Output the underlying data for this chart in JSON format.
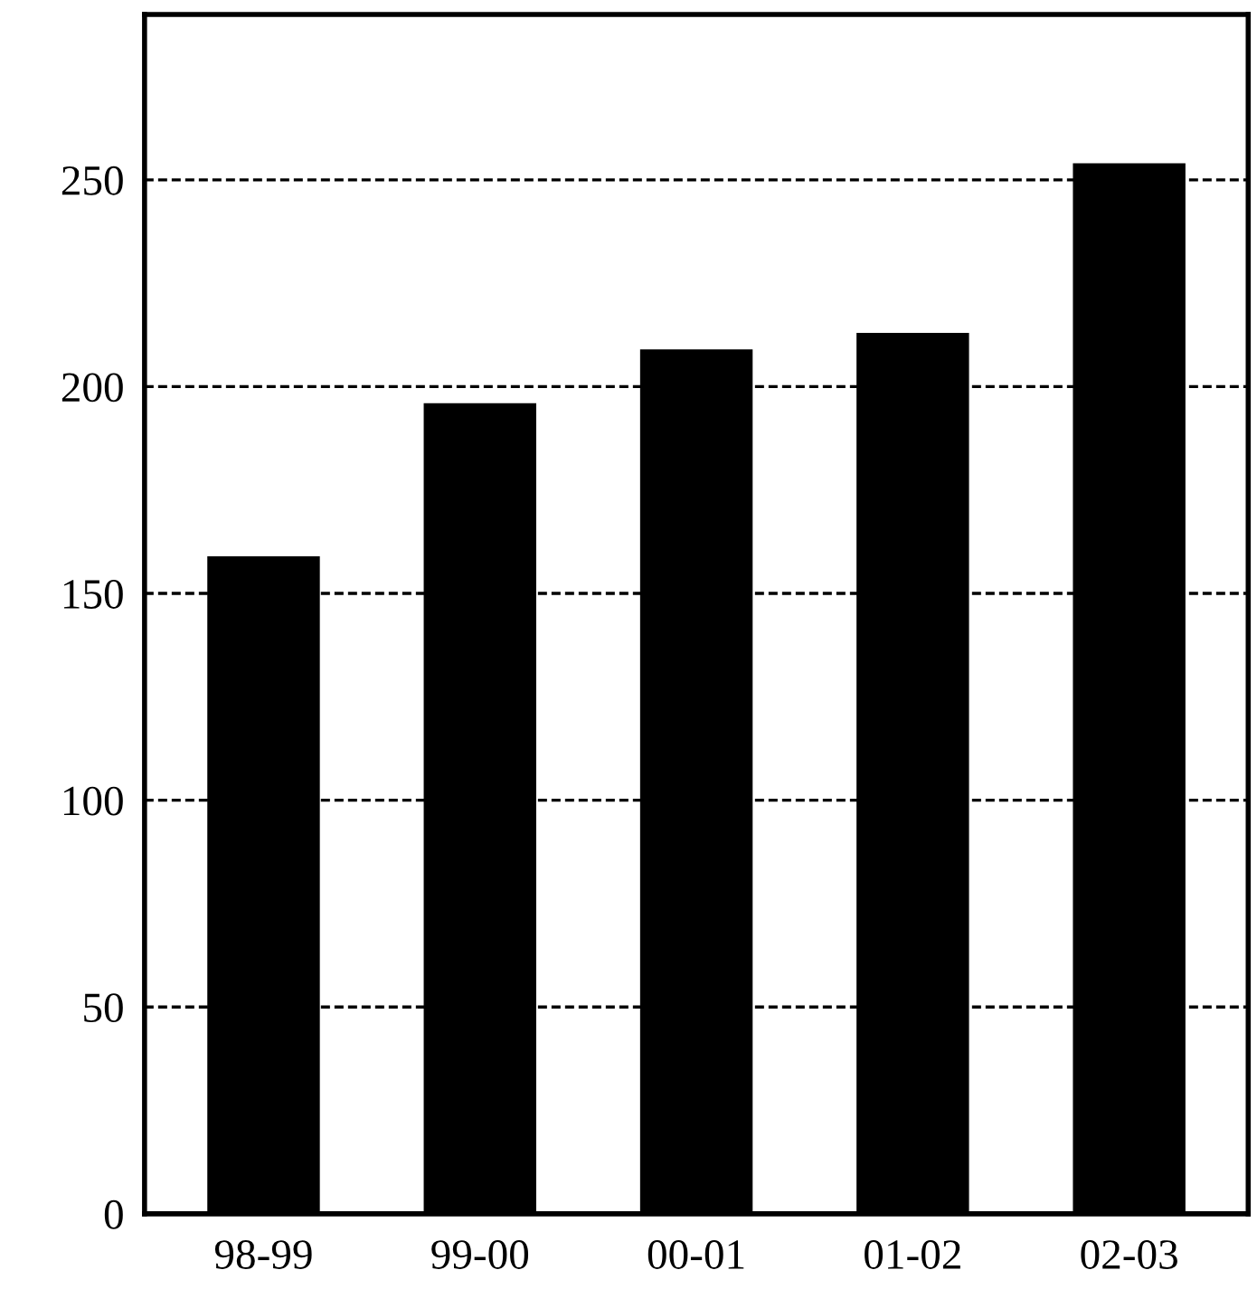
{
  "chart_data": {
    "type": "bar",
    "categories": [
      "98-99",
      "99-00",
      "00-01",
      "01-02",
      "02-03"
    ],
    "values": [
      159,
      196,
      209,
      213,
      254
    ],
    "color": "#000000",
    "ylim": [
      0,
      290
    ],
    "yticks": [
      0,
      50,
      100,
      150,
      200,
      250
    ],
    "grid": "y",
    "line_style": "dashed"
  }
}
